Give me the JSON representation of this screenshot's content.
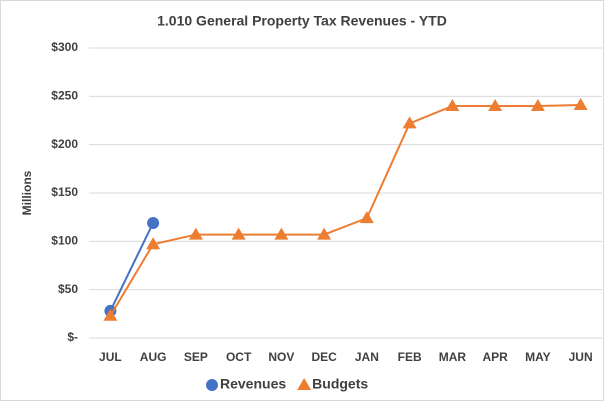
{
  "chart_data": {
    "type": "line",
    "title": "1.010 General Property Tax Revenues - YTD",
    "ylabel": "Millions",
    "categories": [
      "JUL",
      "AUG",
      "SEP",
      "OCT",
      "NOV",
      "DEC",
      "JAN",
      "FEB",
      "MAR",
      "APR",
      "MAY",
      "JUN"
    ],
    "series": [
      {
        "name": "Revenues",
        "color": "#4472c4",
        "marker": "circle",
        "values": [
          28,
          119,
          null,
          null,
          null,
          null,
          null,
          null,
          null,
          null,
          null,
          null
        ]
      },
      {
        "name": "Budgets",
        "color": "#ed7d31",
        "marker": "triangle",
        "values": [
          23,
          97,
          107,
          107,
          107,
          107,
          124,
          222,
          240,
          240,
          240,
          241
        ]
      }
    ],
    "ylim": [
      0,
      300
    ],
    "yticks": [
      {
        "value": 0,
        "label": "$-"
      },
      {
        "value": 50,
        "label": "$50"
      },
      {
        "value": 100,
        "label": "$100"
      },
      {
        "value": 150,
        "label": "$150"
      },
      {
        "value": 200,
        "label": "$200"
      },
      {
        "value": 250,
        "label": "$250"
      },
      {
        "value": 300,
        "label": "$300"
      }
    ],
    "grid": true,
    "legend": "bottom"
  }
}
